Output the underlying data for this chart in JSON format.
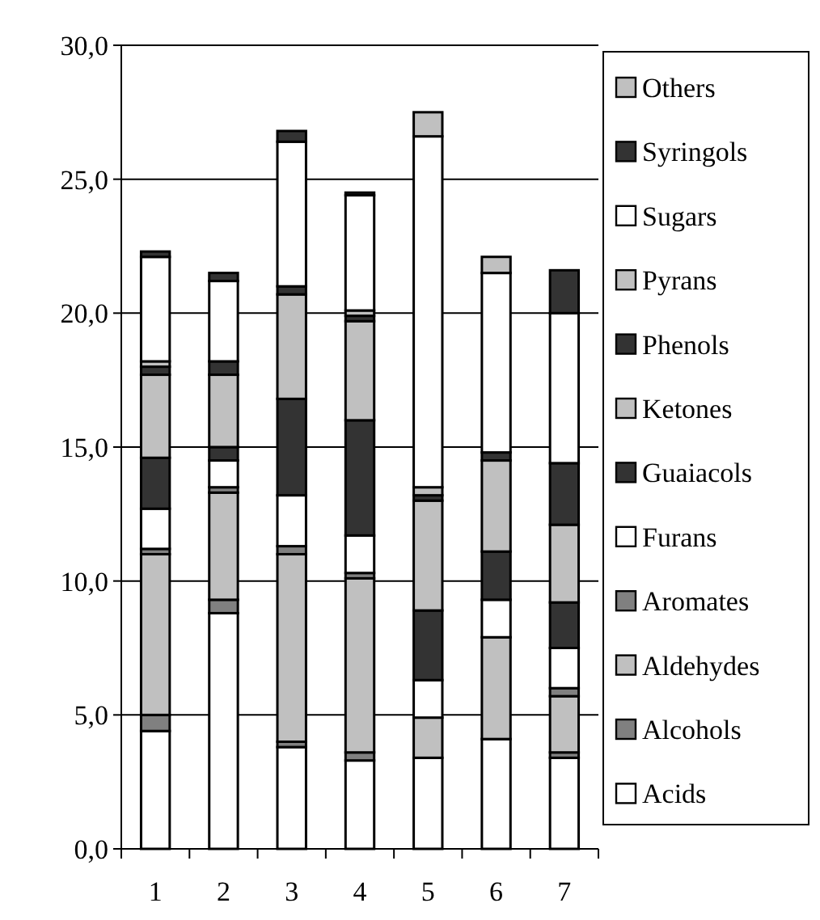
{
  "chart_data": {
    "type": "bar",
    "stacked": true,
    "categories": [
      "1",
      "2",
      "3",
      "4",
      "5",
      "6",
      "7"
    ],
    "ylim": [
      0,
      30
    ],
    "yticks": [
      {
        "value": 0,
        "label": "0,0"
      },
      {
        "value": 5,
        "label": "5,0"
      },
      {
        "value": 10,
        "label": "10,0"
      },
      {
        "value": 15,
        "label": "15,0"
      },
      {
        "value": 20,
        "label": "20,0"
      },
      {
        "value": 25,
        "label": "25,0"
      },
      {
        "value": 30,
        "label": "30,0"
      }
    ],
    "grid": "y",
    "legend": "right",
    "series": [
      {
        "name": "Acids",
        "color": "#ffffff",
        "values": [
          4.4,
          8.8,
          3.8,
          3.3,
          3.4,
          4.1,
          3.4
        ]
      },
      {
        "name": "Alcohols",
        "color": "#808080",
        "values": [
          0.6,
          0.5,
          0.2,
          0.3,
          null,
          0,
          0.2
        ]
      },
      {
        "name": "Aldehydes",
        "color": "#c0c0c0",
        "values": [
          6.0,
          4.0,
          7.0,
          6.5,
          1.5,
          3.8,
          2.1
        ]
      },
      {
        "name": "Aromates",
        "color": "#808080",
        "values": [
          0.2,
          0.2,
          0.3,
          0.2,
          0,
          0,
          0.3
        ]
      },
      {
        "name": "Furans",
        "color": "#ffffff",
        "values": [
          1.5,
          1.0,
          1.9,
          1.4,
          1.4,
          1.4,
          1.5
        ]
      },
      {
        "name": "Guaiacols",
        "color": "#333333",
        "values": [
          1.9,
          0.5,
          3.6,
          4.3,
          2.6,
          1.8,
          1.7
        ]
      },
      {
        "name": "Ketones",
        "color": "#c0c0c0",
        "values": [
          3.1,
          2.7,
          3.9,
          3.7,
          4.1,
          3.4,
          2.9
        ]
      },
      {
        "name": "Phenols",
        "color": "#333333",
        "values": [
          0.3,
          0.5,
          0.3,
          0.2,
          0.2,
          0.3,
          2.3
        ]
      },
      {
        "name": "Pyrans",
        "color": "#c0c0c0",
        "values": [
          0.2,
          null,
          null,
          0.2,
          0.3,
          null,
          0
        ]
      },
      {
        "name": "Sugars",
        "color": "#ffffff",
        "values": [
          3.9,
          3.0,
          5.4,
          4.3,
          13.1,
          6.7,
          5.6
        ]
      },
      {
        "name": "Syringols",
        "color": "#333333",
        "values": [
          0.2,
          0.3,
          0.4,
          0.1,
          0,
          0,
          1.6
        ]
      },
      {
        "name": "Others",
        "color": "#c0c0c0",
        "values": [
          0,
          0,
          0,
          0,
          0.9,
          0.6,
          0
        ]
      }
    ]
  }
}
